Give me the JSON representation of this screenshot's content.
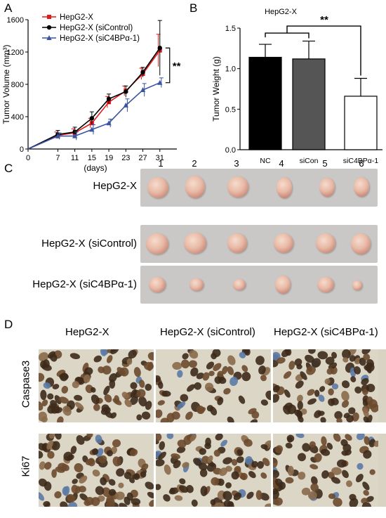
{
  "panels": {
    "A": "A",
    "B": "B",
    "C": "C",
    "D": "D"
  },
  "chart_data": [
    {
      "type": "line",
      "xlabel": "(days)",
      "ylabel": "Tumor Volume (mm³)",
      "x": [
        0,
        7,
        11,
        15,
        19,
        23,
        27,
        31
      ],
      "xlim": [
        0,
        35
      ],
      "ylim": [
        0,
        1600
      ],
      "yticks": [
        0,
        400,
        800,
        1200,
        1600
      ],
      "series": [
        {
          "name": "HepG2-X",
          "color": "#e31a1c",
          "marker": "square",
          "values": [
            null,
            170,
            200,
            320,
            580,
            720,
            930,
            1220
          ],
          "errors": [
            null,
            40,
            50,
            60,
            70,
            60,
            70,
            200
          ]
        },
        {
          "name": "HepG2-X (siControl)",
          "color": "#000000",
          "marker": "circle",
          "values": [
            null,
            180,
            210,
            380,
            620,
            710,
            950,
            1250
          ],
          "errors": [
            null,
            50,
            60,
            80,
            60,
            70,
            60,
            340
          ]
        },
        {
          "name": "HepG2-X (siC4BPα-1)",
          "color": "#3a54a4",
          "marker": "triangle",
          "values": [
            null,
            160,
            160,
            240,
            320,
            540,
            730,
            820
          ],
          "errors": [
            null,
            40,
            50,
            60,
            50,
            80,
            80,
            60
          ]
        }
      ],
      "annotation": "**"
    },
    {
      "type": "bar",
      "title": "HepG2-X",
      "ylabel": "Tumor Weight (g)",
      "categories": [
        "NC",
        "siCon",
        "siC4BPα-1"
      ],
      "values": [
        1.14,
        1.12,
        0.66
      ],
      "errors": [
        0.16,
        0.22,
        0.22
      ],
      "colors": [
        "#000000",
        "#555555",
        "#ffffff"
      ],
      "ylim": [
        0,
        1.5
      ],
      "yticks": [
        "0.0",
        "0.5",
        "1.0",
        "1.5"
      ],
      "annotation": "**"
    }
  ],
  "panel_c": {
    "columns": [
      "1",
      "2",
      "3",
      "4",
      "5",
      "6"
    ],
    "rows": [
      "HepG2-X",
      "HepG2-X (siControl)",
      "HepG2-X (siC4BPα-1)"
    ]
  },
  "panel_d": {
    "columns": [
      "HepG2-X",
      "HepG2-X (siControl)",
      "HepG2-X (siC4BPα-1)"
    ],
    "rows": [
      "Caspase3",
      "Ki67"
    ]
  }
}
